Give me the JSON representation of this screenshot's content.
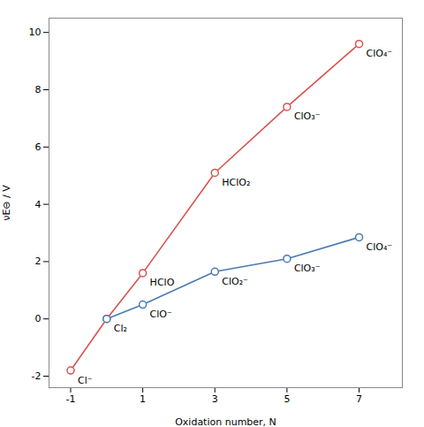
{
  "chart_data": {
    "type": "line",
    "xlabel": "Oxidation number, N",
    "ylabel": "νE⊖ / V",
    "xlim": [
      -1.6,
      8.2
    ],
    "ylim": [
      -2.4,
      10.5
    ],
    "xticks": [
      -1,
      1,
      3,
      5,
      7
    ],
    "yticks": [
      -2,
      0,
      2,
      4,
      6,
      8,
      10
    ],
    "marker": "circle",
    "series": [
      {
        "color": "#d9534f",
        "x": [
          -1,
          0,
          1,
          3,
          5,
          7
        ],
        "values": [
          -1.8,
          0.0,
          1.6,
          5.1,
          7.4,
          9.6
        ],
        "point_labels": [
          "Cl⁻",
          "Cl₂",
          "HClO",
          "HClO₂",
          "ClO₃⁻",
          "ClO₄⁻"
        ]
      },
      {
        "color": "#4a7ab5",
        "x": [
          0,
          1,
          3,
          5,
          7
        ],
        "values": [
          0.0,
          0.5,
          1.65,
          2.1,
          2.85
        ],
        "point_labels": [
          null,
          "ClO⁻",
          "ClO₂⁻",
          "ClO₃⁻",
          "ClO₄⁻"
        ]
      }
    ]
  }
}
